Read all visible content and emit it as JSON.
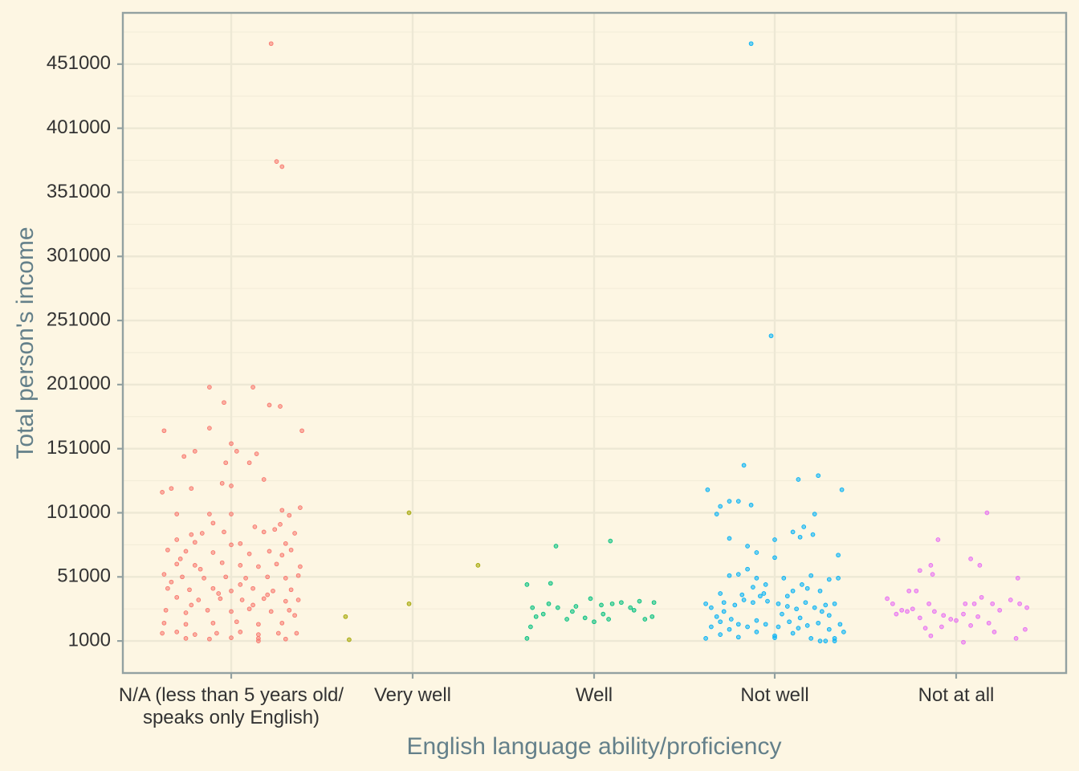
{
  "chart_data": {
    "type": "scatter",
    "xlabel": "English language ability/proficiency",
    "ylabel": "Total person's income",
    "categories": [
      {
        "label_lines": [
          "N/A (less than 5 years old/",
          "speaks only English)"
        ]
      },
      {
        "label_lines": [
          "Very well"
        ]
      },
      {
        "label_lines": [
          "Well"
        ]
      },
      {
        "label_lines": [
          "Not well"
        ]
      },
      {
        "label_lines": [
          "Not at all"
        ]
      }
    ],
    "y_ticks": [
      "1000",
      "51000",
      "101000",
      "151000",
      "201000",
      "251000",
      "301000",
      "351000",
      "401000",
      "451000"
    ],
    "ylim": [
      -24000,
      491000
    ],
    "grid": true,
    "jitter": true,
    "colors": [
      "#f8766d",
      "#a3a500",
      "#00bf7d",
      "#00b0f6",
      "#e76bf3"
    ],
    "series": [
      {
        "category_index": 0,
        "points": [
          [
            0.22,
            467000
          ],
          [
            0.25,
            375000
          ],
          [
            0.28,
            371000
          ],
          [
            -0.12,
            199000
          ],
          [
            -0.04,
            187000
          ],
          [
            0.12,
            199000
          ],
          [
            0.21,
            185000
          ],
          [
            0.27,
            184000
          ],
          [
            0.39,
            165000
          ],
          [
            -0.37,
            165000
          ],
          [
            -0.12,
            167000
          ],
          [
            -0.26,
            145000
          ],
          [
            0.0,
            155000
          ],
          [
            -0.2,
            149000
          ],
          [
            0.03,
            149000
          ],
          [
            -0.03,
            140000
          ],
          [
            0.14,
            147000
          ],
          [
            0.1,
            140000
          ],
          [
            -0.05,
            124000
          ],
          [
            0.0,
            122000
          ],
          [
            0.18,
            127000
          ],
          [
            -0.38,
            117000
          ],
          [
            -0.33,
            120000
          ],
          [
            -0.22,
            120000
          ],
          [
            0.38,
            105000
          ],
          [
            0.28,
            103000
          ],
          [
            0.32,
            99000
          ],
          [
            -0.3,
            100000
          ],
          [
            -0.12,
            100000
          ],
          [
            0.0,
            100000
          ],
          [
            0.27,
            92000
          ],
          [
            0.18,
            86000
          ],
          [
            -0.1,
            93000
          ],
          [
            0.13,
            90000
          ],
          [
            0.24,
            88000
          ],
          [
            -0.16,
            85000
          ],
          [
            -0.04,
            86000
          ],
          [
            -0.22,
            84000
          ],
          [
            0.35,
            85000
          ],
          [
            0.05,
            77000
          ],
          [
            -0.3,
            80000
          ],
          [
            -0.2,
            78000
          ],
          [
            0.0,
            76000
          ],
          [
            0.3,
            77000
          ],
          [
            -0.35,
            72000
          ],
          [
            -0.25,
            71000
          ],
          [
            -0.1,
            70000
          ],
          [
            0.1,
            69000
          ],
          [
            0.21,
            71000
          ],
          [
            0.33,
            72000
          ],
          [
            -0.3,
            61000
          ],
          [
            -0.2,
            60000
          ],
          [
            -0.05,
            62000
          ],
          [
            0.05,
            60000
          ],
          [
            0.15,
            59000
          ],
          [
            0.25,
            61000
          ],
          [
            0.38,
            59000
          ],
          [
            -0.37,
            53000
          ],
          [
            -0.27,
            51000
          ],
          [
            -0.15,
            50000
          ],
          [
            -0.03,
            51000
          ],
          [
            0.08,
            50000
          ],
          [
            0.2,
            51000
          ],
          [
            0.3,
            50000
          ],
          [
            0.37,
            52000
          ],
          [
            -0.35,
            42000
          ],
          [
            -0.23,
            41000
          ],
          [
            -0.1,
            42000
          ],
          [
            0.0,
            40000
          ],
          [
            0.12,
            42000
          ],
          [
            0.23,
            40000
          ],
          [
            0.33,
            41000
          ],
          [
            -0.3,
            35000
          ],
          [
            -0.18,
            33000
          ],
          [
            -0.06,
            34000
          ],
          [
            0.06,
            33000
          ],
          [
            0.18,
            34000
          ],
          [
            0.3,
            32000
          ],
          [
            0.37,
            33000
          ],
          [
            -0.36,
            25000
          ],
          [
            -0.25,
            23000
          ],
          [
            -0.13,
            25000
          ],
          [
            0.0,
            24000
          ],
          [
            0.1,
            26000
          ],
          [
            0.22,
            24000
          ],
          [
            0.32,
            25000
          ],
          [
            -0.37,
            15000
          ],
          [
            -0.25,
            14000
          ],
          [
            -0.1,
            15000
          ],
          [
            0.03,
            16000
          ],
          [
            0.15,
            14000
          ],
          [
            0.28,
            15000
          ],
          [
            -0.38,
            7000
          ],
          [
            -0.3,
            8000
          ],
          [
            -0.2,
            6000
          ],
          [
            -0.08,
            7000
          ],
          [
            0.05,
            8000
          ],
          [
            0.15,
            6000
          ],
          [
            0.26,
            7000
          ],
          [
            0.36,
            7000
          ],
          [
            -0.25,
            3000
          ],
          [
            -0.12,
            2500
          ],
          [
            0.0,
            3500
          ],
          [
            0.15,
            3000
          ],
          [
            0.3,
            2500
          ],
          [
            -0.33,
            47000
          ],
          [
            -0.17,
            57000
          ],
          [
            0.28,
            68000
          ],
          [
            -0.07,
            38000
          ],
          [
            0.12,
            29000
          ],
          [
            0.35,
            21000
          ],
          [
            -0.28,
            65000
          ],
          [
            0.05,
            45000
          ],
          [
            0.2,
            37000
          ],
          [
            -0.22,
            29000
          ],
          [
            0.15,
            1000
          ]
        ]
      },
      {
        "category_index": 1,
        "points": [
          [
            -0.02,
            101000
          ],
          [
            -0.02,
            30000
          ],
          [
            -0.37,
            20000
          ],
          [
            -0.35,
            2000
          ],
          [
            0.36,
            60000
          ]
        ]
      },
      {
        "category_index": 2,
        "points": [
          [
            -0.21,
            75000
          ],
          [
            0.09,
            79000
          ],
          [
            -0.37,
            45000
          ],
          [
            -0.24,
            46000
          ],
          [
            -0.35,
            12000
          ],
          [
            -0.37,
            3000
          ],
          [
            -0.34,
            27000
          ],
          [
            -0.32,
            20000
          ],
          [
            -0.25,
            30000
          ],
          [
            -0.2,
            27000
          ],
          [
            -0.12,
            24000
          ],
          [
            -0.05,
            19000
          ],
          [
            0.0,
            16000
          ],
          [
            0.05,
            22000
          ],
          [
            0.1,
            30000
          ],
          [
            0.2,
            27000
          ],
          [
            0.25,
            32000
          ],
          [
            0.32,
            20000
          ],
          [
            -0.1,
            28000
          ],
          [
            -0.02,
            34000
          ],
          [
            0.08,
            18000
          ],
          [
            0.15,
            31000
          ],
          [
            0.22,
            25000
          ],
          [
            0.28,
            18000
          ],
          [
            0.33,
            31000
          ],
          [
            -0.28,
            22000
          ],
          [
            -0.15,
            18000
          ],
          [
            0.04,
            29000
          ]
        ]
      },
      {
        "category_index": 3,
        "points": [
          [
            -0.13,
            467000
          ],
          [
            -0.02,
            239000
          ],
          [
            -0.37,
            119000
          ],
          [
            0.13,
            127000
          ],
          [
            0.24,
            130000
          ],
          [
            0.37,
            119000
          ],
          [
            -0.17,
            138000
          ],
          [
            -0.25,
            110000
          ],
          [
            -0.3,
            106000
          ],
          [
            -0.2,
            110000
          ],
          [
            -0.13,
            107000
          ],
          [
            -0.32,
            100000
          ],
          [
            0.22,
            100000
          ],
          [
            -0.25,
            81000
          ],
          [
            0.0,
            80000
          ],
          [
            0.1,
            86000
          ],
          [
            0.16,
            90000
          ],
          [
            0.21,
            84000
          ],
          [
            -0.15,
            75000
          ],
          [
            -0.1,
            70000
          ],
          [
            0.14,
            82000
          ],
          [
            0.35,
            68000
          ],
          [
            0.0,
            66000
          ],
          [
            -0.38,
            30000
          ],
          [
            -0.32,
            20000
          ],
          [
            -0.3,
            38000
          ],
          [
            -0.25,
            52000
          ],
          [
            -0.2,
            53000
          ],
          [
            -0.15,
            57000
          ],
          [
            -0.1,
            50000
          ],
          [
            -0.05,
            45000
          ],
          [
            0.05,
            50000
          ],
          [
            0.1,
            40000
          ],
          [
            0.15,
            45000
          ],
          [
            0.2,
            52000
          ],
          [
            0.25,
            40000
          ],
          [
            0.3,
            49000
          ],
          [
            0.35,
            50000
          ],
          [
            -0.35,
            27000
          ],
          [
            -0.28,
            31000
          ],
          [
            -0.22,
            29000
          ],
          [
            -0.17,
            33000
          ],
          [
            -0.12,
            31000
          ],
          [
            -0.08,
            36000
          ],
          [
            -0.04,
            32000
          ],
          [
            0.02,
            30000
          ],
          [
            0.07,
            28000
          ],
          [
            0.12,
            26000
          ],
          [
            0.17,
            31000
          ],
          [
            0.22,
            27000
          ],
          [
            0.28,
            29000
          ],
          [
            0.33,
            30000
          ],
          [
            -0.35,
            12000
          ],
          [
            -0.3,
            16000
          ],
          [
            -0.25,
            10000
          ],
          [
            -0.2,
            14000
          ],
          [
            -0.15,
            12000
          ],
          [
            -0.1,
            17000
          ],
          [
            -0.05,
            14000
          ],
          [
            0.02,
            12000
          ],
          [
            0.08,
            16000
          ],
          [
            0.13,
            11000
          ],
          [
            0.18,
            13000
          ],
          [
            0.24,
            15000
          ],
          [
            0.3,
            10000
          ],
          [
            0.36,
            14000
          ],
          [
            -0.38,
            3000
          ],
          [
            -0.3,
            6000
          ],
          [
            -0.2,
            4000
          ],
          [
            -0.1,
            8000
          ],
          [
            0.0,
            5000
          ],
          [
            0.1,
            7000
          ],
          [
            0.2,
            3000
          ],
          [
            0.25,
            1000
          ],
          [
            0.28,
            1000
          ],
          [
            0.33,
            1000
          ],
          [
            0.38,
            8000
          ],
          [
            -0.12,
            43000
          ],
          [
            0.18,
            42000
          ],
          [
            -0.28,
            24000
          ],
          [
            0.04,
            22000
          ],
          [
            0.3,
            21000
          ],
          [
            -0.06,
            38000
          ],
          [
            0.07,
            36000
          ],
          [
            -0.24,
            18000
          ],
          [
            0.14,
            19000
          ],
          [
            0.26,
            24000
          ],
          [
            -0.18,
            37000
          ],
          [
            0.33,
            3000
          ],
          [
            0.0,
            3500
          ]
        ]
      },
      {
        "category_index": 4,
        "points": [
          [
            0.17,
            101000
          ],
          [
            -0.1,
            80000
          ],
          [
            0.08,
            65000
          ],
          [
            0.13,
            60000
          ],
          [
            -0.2,
            56000
          ],
          [
            -0.14,
            60000
          ],
          [
            -0.13,
            53000
          ],
          [
            0.34,
            50000
          ],
          [
            -0.26,
            40000
          ],
          [
            -0.22,
            40000
          ],
          [
            -0.38,
            34000
          ],
          [
            -0.35,
            30000
          ],
          [
            -0.3,
            25000
          ],
          [
            -0.27,
            24000
          ],
          [
            -0.24,
            26000
          ],
          [
            -0.2,
            19000
          ],
          [
            -0.15,
            30000
          ],
          [
            -0.12,
            24000
          ],
          [
            -0.07,
            21000
          ],
          [
            -0.03,
            18000
          ],
          [
            0.0,
            17000
          ],
          [
            0.04,
            22000
          ],
          [
            0.1,
            30000
          ],
          [
            0.14,
            35000
          ],
          [
            0.2,
            30000
          ],
          [
            0.24,
            25000
          ],
          [
            0.3,
            33000
          ],
          [
            0.35,
            30000
          ],
          [
            0.39,
            27000
          ],
          [
            -0.33,
            22000
          ],
          [
            -0.17,
            11000
          ],
          [
            -0.14,
            5000
          ],
          [
            -0.08,
            12000
          ],
          [
            0.05,
            30000
          ],
          [
            0.08,
            13000
          ],
          [
            0.12,
            20000
          ],
          [
            0.18,
            15000
          ],
          [
            0.21,
            8000
          ],
          [
            0.33,
            3000
          ],
          [
            0.38,
            10000
          ],
          [
            0.04,
            0
          ]
        ]
      }
    ]
  }
}
